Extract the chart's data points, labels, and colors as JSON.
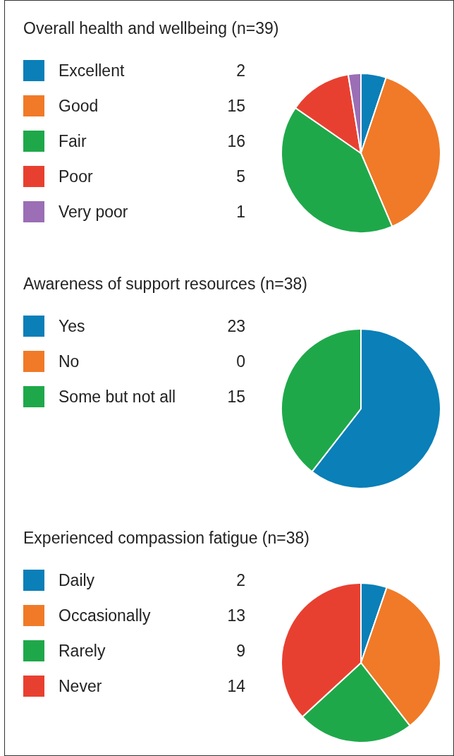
{
  "chart_data": [
    {
      "type": "pie",
      "title": "Overall health and wellbeing (n=39)",
      "categories": [
        "Excellent",
        "Good",
        "Fair",
        "Poor",
        "Very poor"
      ],
      "values": [
        2,
        15,
        16,
        5,
        1
      ],
      "value_labels": [
        "2",
        "15",
        "16",
        "5",
        "1"
      ],
      "colors": [
        "#0a7fb8",
        "#f07a28",
        "#1fa84a",
        "#e84030",
        "#9b6eb5"
      ],
      "legend": "left"
    },
    {
      "type": "pie",
      "title": "Awareness of support resources (n=38)",
      "categories": [
        "Yes",
        "No",
        "Some but not all"
      ],
      "values": [
        23,
        0,
        15
      ],
      "value_labels": [
        "23",
        "0",
        "15"
      ],
      "colors": [
        "#0a7fb8",
        "#f07a28",
        "#1fa84a"
      ],
      "legend": "left"
    },
    {
      "type": "pie",
      "title": "Experienced compassion fatigue (n=38)",
      "categories": [
        "Daily",
        "Occasionally",
        "Rarely",
        "Never"
      ],
      "values": [
        2,
        13,
        9,
        14
      ],
      "value_labels": [
        "2",
        "13",
        "9",
        "14"
      ],
      "colors": [
        "#0a7fb8",
        "#f07a28",
        "#1fa84a",
        "#e84030"
      ],
      "legend": "left"
    }
  ]
}
